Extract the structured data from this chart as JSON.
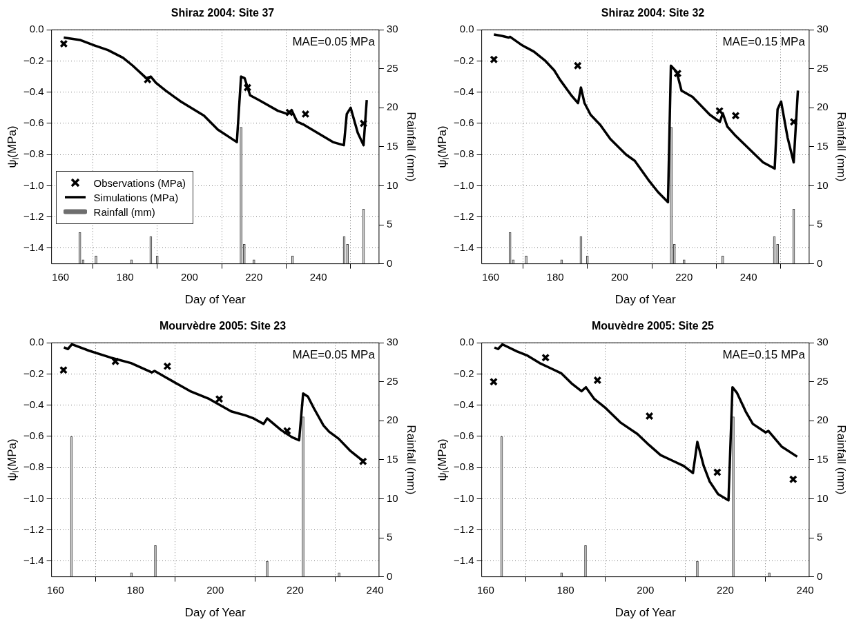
{
  "chart_data": [
    {
      "type": "line",
      "title": "Shiraz 2004: Site 37",
      "xlabel": "Day of Year",
      "ylabel": "ψ$_{l}$(MPa)",
      "y2label": "Rainfall (mm)",
      "annotations": [
        "MAE=0.05 MPa"
      ],
      "xlim": [
        157.2,
        258.8
      ],
      "xticks": [
        160,
        180,
        200,
        220,
        240
      ],
      "ylim": [
        -1.5,
        0
      ],
      "yticks": [
        {
          "value": -1.4,
          "label": "−1.4"
        },
        {
          "value": -1.2,
          "label": "−1.2"
        },
        {
          "value": -1,
          "label": "−1.0"
        },
        {
          "value": -0.8,
          "label": "−0.8"
        },
        {
          "value": -0.6,
          "label": "−0.6"
        },
        {
          "value": -0.4,
          "label": "−0.4"
        },
        {
          "value": -0.2,
          "label": "−0.2"
        },
        {
          "value": 0,
          "label": "0.0"
        }
      ],
      "y2lim": [
        0,
        30
      ],
      "y2ticks": [
        0,
        5,
        10,
        15,
        20,
        25,
        30
      ],
      "grid": true,
      "legend": "bottom left",
      "series": [
        {
          "type": "bar",
          "axis": "y2",
          "name": "Rainfall (mm)",
          "color": "#c8c8c8",
          "x": [
            166,
            167,
            171,
            182,
            188,
            190,
            216,
            217,
            220,
            232,
            248,
            249,
            254
          ],
          "values": [
            4,
            0.5,
            1,
            0.5,
            3.5,
            1,
            17.5,
            2.5,
            0.5,
            1,
            3.5,
            2.5,
            7
          ]
        },
        {
          "name": "Simulations (MPa)",
          "color": "#000000",
          "x": [
            161,
            166,
            170.5,
            174.7,
            179.4,
            182.4,
            186.6,
            188,
            189.6,
            192.6,
            197.3,
            204.5,
            208.8,
            214.7,
            216,
            217.1,
            218.8,
            221.5,
            227.5,
            230.5,
            231.7,
            233.4,
            235.6,
            244.5,
            247.9,
            248.8,
            250,
            252.2,
            254,
            255
          ],
          "values": [
            -0.05,
            -0.065,
            -0.1,
            -0.13,
            -0.18,
            -0.23,
            -0.31,
            -0.3,
            -0.34,
            -0.39,
            -0.46,
            -0.55,
            -0.64,
            -0.72,
            -0.3,
            -0.31,
            -0.42,
            -0.45,
            -0.52,
            -0.54,
            -0.515,
            -0.59,
            -0.61,
            -0.72,
            -0.74,
            -0.54,
            -0.5,
            -0.66,
            -0.74,
            -0.45
          ]
        },
        {
          "type": "scatter",
          "marker": "cross",
          "name": "Observations (MPa)",
          "color": "#000000",
          "x": [
            161,
            187,
            218,
            231,
            236,
            254
          ],
          "values": [
            -0.09,
            -0.32,
            -0.37,
            -0.53,
            -0.54,
            -0.6
          ]
        }
      ]
    },
    {
      "type": "line",
      "title": "Shiraz 2004: Site 32",
      "xlabel": "Day of Year",
      "ylabel": "ψ$_{l}$(MPa)",
      "y2label": "Rainfall (mm)",
      "annotations": [
        "MAE=0.15 MPa"
      ],
      "xlim": [
        157.2,
        258.8
      ],
      "xticks": [
        160,
        180,
        200,
        220,
        240
      ],
      "ylim": [
        -1.5,
        0
      ],
      "yticks": [
        {
          "value": -1.4,
          "label": "−1.4"
        },
        {
          "value": -1.2,
          "label": "−1.2"
        },
        {
          "value": -1,
          "label": "−1.0"
        },
        {
          "value": -0.8,
          "label": "−0.8"
        },
        {
          "value": -0.6,
          "label": "−0.6"
        },
        {
          "value": -0.4,
          "label": "−0.4"
        },
        {
          "value": -0.2,
          "label": "−0.2"
        },
        {
          "value": 0,
          "label": "0.0"
        }
      ],
      "y2lim": [
        0,
        30
      ],
      "y2ticks": [
        0,
        5,
        10,
        15,
        20,
        25,
        30
      ],
      "grid": true,
      "series": [
        {
          "type": "bar",
          "axis": "y2",
          "color": "#c8c8c8",
          "x": [
            166,
            167,
            171,
            182,
            188,
            190,
            216,
            217,
            220,
            232,
            248,
            249,
            254
          ],
          "values": [
            4,
            0.5,
            1,
            0.5,
            3.5,
            1,
            17.5,
            2.5,
            0.5,
            1,
            3.5,
            2.5,
            7
          ]
        },
        {
          "color": "#000000",
          "x": [
            161,
            163.6,
            165.6,
            166,
            169.8,
            173.4,
            177,
            179.7,
            181.5,
            185,
            187.1,
            188,
            189.1,
            191,
            194,
            197.1,
            202,
            204.7,
            209.2,
            211.9,
            215,
            215.9,
            217.7,
            219.2,
            222.6,
            228,
            231.1,
            232,
            233.4,
            236,
            244.5,
            248.1,
            249,
            250.1,
            252.1,
            254,
            255.3
          ],
          "values": [
            -0.03,
            -0.04,
            -0.05,
            -0.045,
            -0.1,
            -0.14,
            -0.2,
            -0.26,
            -0.32,
            -0.42,
            -0.47,
            -0.37,
            -0.47,
            -0.545,
            -0.61,
            -0.7,
            -0.8,
            -0.84,
            -0.97,
            -1.04,
            -1.105,
            -0.23,
            -0.27,
            -0.39,
            -0.43,
            -0.545,
            -0.59,
            -0.535,
            -0.62,
            -0.68,
            -0.85,
            -0.89,
            -0.51,
            -0.46,
            -0.69,
            -0.85,
            -0.39
          ]
        },
        {
          "type": "scatter",
          "marker": "cross",
          "color": "#000000",
          "x": [
            161,
            187,
            218,
            231,
            236,
            254
          ],
          "values": [
            -0.19,
            -0.23,
            -0.28,
            -0.52,
            -0.55,
            -0.59
          ]
        }
      ]
    },
    {
      "type": "line",
      "title": "Mourvèdre 2005: Site 23",
      "xlabel": "Day of Year",
      "ylabel": "ψ$_{l}$(MPa)",
      "y2label": "Rainfall (mm)",
      "annotations": [
        "MAE=0.05 MPa"
      ],
      "xlim": [
        159,
        241
      ],
      "xticks": [
        160,
        180,
        200,
        220,
        240
      ],
      "ylim": [
        -1.5,
        0
      ],
      "yticks": [
        {
          "value": -1.4,
          "label": "−1.4"
        },
        {
          "value": -1.2,
          "label": "−1.2"
        },
        {
          "value": -1,
          "label": "−1.0"
        },
        {
          "value": -0.8,
          "label": "−0.8"
        },
        {
          "value": -0.6,
          "label": "−0.6"
        },
        {
          "value": -0.4,
          "label": "−0.4"
        },
        {
          "value": -0.2,
          "label": "−0.2"
        },
        {
          "value": 0,
          "label": "0.0"
        }
      ],
      "y2lim": [
        0,
        30
      ],
      "y2ticks": [
        0,
        5,
        10,
        15,
        20,
        25,
        30
      ],
      "grid": true,
      "series": [
        {
          "type": "bar",
          "axis": "y2",
          "color": "#c8c8c8",
          "x": [
            164,
            179,
            185,
            213,
            222,
            231
          ],
          "values": [
            18,
            0.5,
            4,
            2,
            20.5,
            0.5
          ]
        },
        {
          "color": "#000000",
          "x": [
            162.1,
            163.1,
            164.1,
            168.3,
            173.8,
            178.9,
            184.1,
            184.8,
            187.5,
            193.7,
            198.5,
            204,
            207.5,
            209.6,
            212.1,
            213,
            216.5,
            219.2,
            221,
            222,
            223.2,
            224.7,
            227.1,
            228.5,
            230.9,
            233.7,
            237.1
          ],
          "values": [
            -0.03,
            -0.04,
            -0.01,
            -0.05,
            -0.095,
            -0.13,
            -0.19,
            -0.18,
            -0.22,
            -0.31,
            -0.36,
            -0.44,
            -0.465,
            -0.485,
            -0.52,
            -0.485,
            -0.56,
            -0.605,
            -0.625,
            -0.325,
            -0.345,
            -0.42,
            -0.53,
            -0.57,
            -0.615,
            -0.69,
            -0.76
          ]
        },
        {
          "type": "scatter",
          "marker": "cross",
          "color": "#000000",
          "x": [
            162,
            175,
            188,
            201,
            218,
            237
          ],
          "values": [
            -0.175,
            -0.12,
            -0.15,
            -0.36,
            -0.565,
            -0.76
          ]
        }
      ]
    },
    {
      "type": "line",
      "title": "Mouvèdre 2005: Site 25",
      "xlabel": "Day of Year",
      "ylabel": "ψ$_{l}$(MPa)",
      "y2label": "Rainfall (mm)",
      "annotations": [
        "MAE=0.15 MPa"
      ],
      "xlim": [
        159,
        241
      ],
      "xticks": [
        160,
        180,
        200,
        220,
        240
      ],
      "ylim": [
        -1.5,
        0
      ],
      "yticks": [
        {
          "value": -1.4,
          "label": "−1.4"
        },
        {
          "value": -1.2,
          "label": "−1.2"
        },
        {
          "value": -1,
          "label": "−1.0"
        },
        {
          "value": -0.8,
          "label": "−0.8"
        },
        {
          "value": -0.6,
          "label": "−0.6"
        },
        {
          "value": -0.4,
          "label": "−0.4"
        },
        {
          "value": -0.2,
          "label": "−0.2"
        },
        {
          "value": 0,
          "label": "0.0"
        }
      ],
      "y2lim": [
        0,
        30
      ],
      "y2ticks": [
        0,
        5,
        10,
        15,
        20,
        25,
        30
      ],
      "grid": true,
      "series": [
        {
          "type": "bar",
          "axis": "y2",
          "color": "#c8c8c8",
          "x": [
            164,
            179,
            185,
            213,
            222,
            231
          ],
          "values": [
            18,
            0.5,
            4,
            2,
            20.5,
            0.5
          ]
        },
        {
          "color": "#000000",
          "x": [
            162.2,
            163.1,
            164.2,
            167.8,
            170.3,
            173.5,
            176.4,
            178.9,
            181.5,
            184,
            185.1,
            187.2,
            190.1,
            193.7,
            198,
            200.9,
            203.8,
            206.7,
            209.6,
            211.9,
            213,
            214.6,
            216.1,
            218.2,
            220.8,
            221.8,
            222.9,
            225.1,
            226.9,
            230.1,
            230.8,
            234.1,
            238
          ],
          "values": [
            -0.03,
            -0.04,
            -0.01,
            -0.055,
            -0.08,
            -0.13,
            -0.165,
            -0.195,
            -0.26,
            -0.31,
            -0.285,
            -0.36,
            -0.42,
            -0.51,
            -0.585,
            -0.655,
            -0.72,
            -0.755,
            -0.79,
            -0.835,
            -0.635,
            -0.79,
            -0.89,
            -0.97,
            -1.01,
            -0.285,
            -0.32,
            -0.44,
            -0.52,
            -0.575,
            -0.565,
            -0.665,
            -0.73
          ]
        },
        {
          "type": "scatter",
          "marker": "cross",
          "color": "#000000",
          "x": [
            162,
            175,
            188,
            201,
            218,
            237
          ],
          "values": [
            -0.25,
            -0.095,
            -0.24,
            -0.47,
            -0.83,
            -0.875
          ]
        }
      ]
    }
  ]
}
